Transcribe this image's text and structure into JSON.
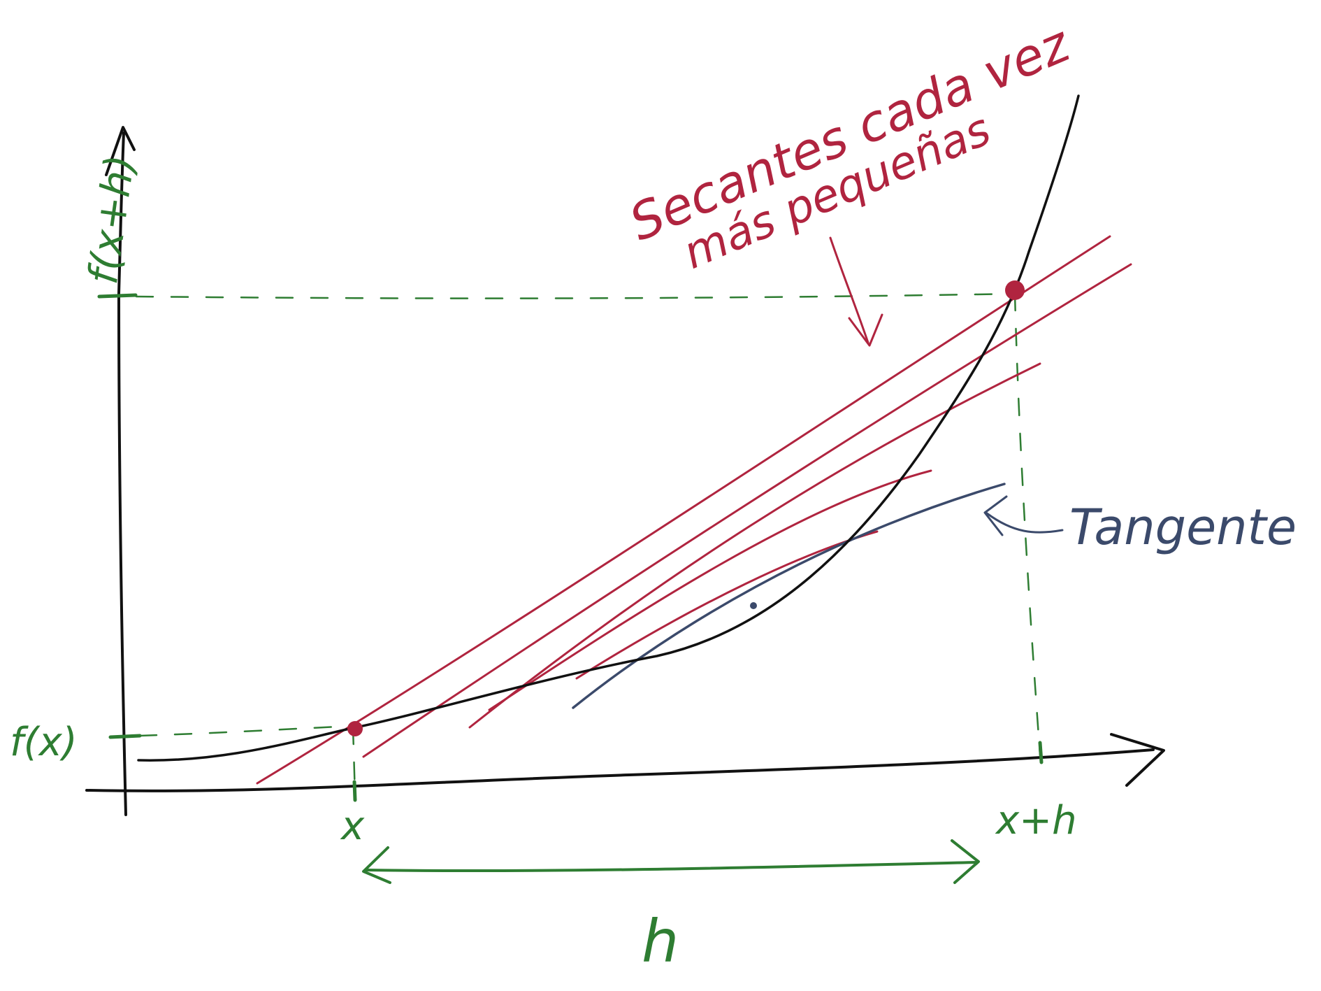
{
  "colors": {
    "axis": "#111111",
    "guide": "#2e7d32",
    "secant": "#b0243f",
    "tangent": "#3b4a6b",
    "background": "#ffffff"
  },
  "labels": {
    "fxh": "f(x+h)",
    "fx": "f(x)",
    "x": "x",
    "xh": "x+h",
    "h": "h",
    "annotation_line1": "Secantes cada vez",
    "annotation_line2": "más pequeñas",
    "tangent": "Tangente"
  }
}
